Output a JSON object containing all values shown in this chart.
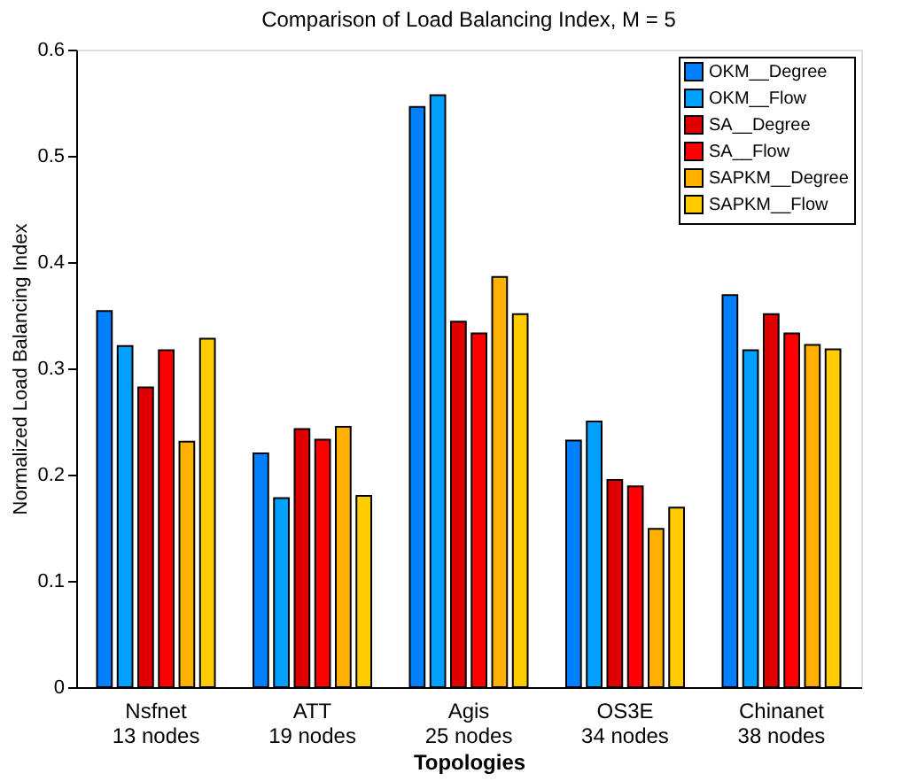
{
  "chart_data": {
    "type": "bar",
    "title": "Comparison of Load Balancing Index, M = 5",
    "xlabel": "Topologies",
    "ylabel": "Normalized Load Balancing Index",
    "categories": [
      "Nsfnet\n13 nodes",
      "ATT\n19 nodes",
      "Agis\n25 nodes",
      "OS3E\n34 nodes",
      "Chinanet\n38 nodes"
    ],
    "series": [
      {
        "name": "OKM__Degree",
        "color": "#0080ff",
        "values": [
          0.354,
          0.22,
          0.546,
          0.232,
          0.369
        ]
      },
      {
        "name": "OKM__Flow",
        "color": "#00a0ff",
        "values": [
          0.321,
          0.178,
          0.557,
          0.25,
          0.317
        ]
      },
      {
        "name": "SA__Degree",
        "color": "#e00000",
        "values": [
          0.282,
          0.243,
          0.344,
          0.195,
          0.351
        ]
      },
      {
        "name": "SA__Flow",
        "color": "#ff0000",
        "values": [
          0.317,
          0.233,
          0.333,
          0.189,
          0.333
        ]
      },
      {
        "name": "SAPKM__Degree",
        "color": "#ffb000",
        "values": [
          0.231,
          0.245,
          0.386,
          0.149,
          0.322
        ]
      },
      {
        "name": "SAPKM__Flow",
        "color": "#ffcc00",
        "values": [
          0.328,
          0.18,
          0.351,
          0.169,
          0.318
        ]
      }
    ],
    "ylim": [
      0,
      0.6
    ],
    "yticks": [
      0,
      0.1,
      0.2,
      0.3,
      0.4,
      0.5,
      0.6
    ],
    "grid": false,
    "legend": "top right"
  }
}
